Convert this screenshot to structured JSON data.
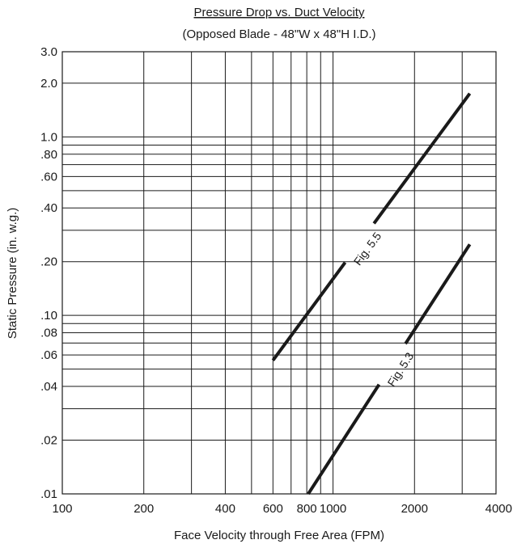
{
  "chart_data": {
    "type": "line",
    "title": "Pressure Drop vs. Duct Velocity",
    "subtitle": "(Opposed Blade - 48\"W x 48\"H I.D.)",
    "xlabel": "Face Velocity through Free Area (FPM)",
    "ylabel": "Static Pressure (in. w.g.)",
    "x_scale": "log",
    "y_scale": "log",
    "xlim": [
      100,
      4000
    ],
    "ylim": [
      0.01,
      3.0
    ],
    "grid": true,
    "x_ticks": [
      {
        "value": 100,
        "label": "100"
      },
      {
        "value": 200,
        "label": "200"
      },
      {
        "value": 400,
        "label": "400"
      },
      {
        "value": 600,
        "label": "600"
      },
      {
        "value": 800,
        "label": "800"
      },
      {
        "value": 1000,
        "label": "1000"
      },
      {
        "value": 2000,
        "label": "2000"
      },
      {
        "value": 4000,
        "label": "4000"
      }
    ],
    "x_gridlines": [
      200,
      300,
      400,
      500,
      600,
      700,
      800,
      900,
      1000,
      2000,
      3000
    ],
    "y_ticks": [
      {
        "value": 0.01,
        "label": ".01"
      },
      {
        "value": 0.02,
        "label": ".02"
      },
      {
        "value": 0.04,
        "label": ".04"
      },
      {
        "value": 0.06,
        "label": ".06"
      },
      {
        "value": 0.08,
        "label": ".08"
      },
      {
        "value": 0.1,
        "label": ".10"
      },
      {
        "value": 0.2,
        "label": ".20"
      },
      {
        "value": 0.4,
        "label": ".40"
      },
      {
        "value": 0.6,
        "label": ".60"
      },
      {
        "value": 0.8,
        "label": ".80"
      },
      {
        "value": 1.0,
        "label": "1.0"
      },
      {
        "value": 2.0,
        "label": "2.0"
      },
      {
        "value": 3.0,
        "label": "3.0"
      }
    ],
    "y_gridlines": [
      0.02,
      0.03,
      0.04,
      0.05,
      0.06,
      0.07,
      0.08,
      0.09,
      0.1,
      0.2,
      0.3,
      0.4,
      0.5,
      0.6,
      0.7,
      0.8,
      0.9,
      1.0,
      2.0
    ],
    "series": [
      {
        "name": "Fig. 5.5",
        "x": [
          600,
          3200
        ],
        "y": [
          0.056,
          1.75
        ]
      },
      {
        "name": "Fig. 5.3",
        "x": [
          810,
          3200
        ],
        "y": [
          0.01,
          0.25
        ]
      }
    ]
  }
}
